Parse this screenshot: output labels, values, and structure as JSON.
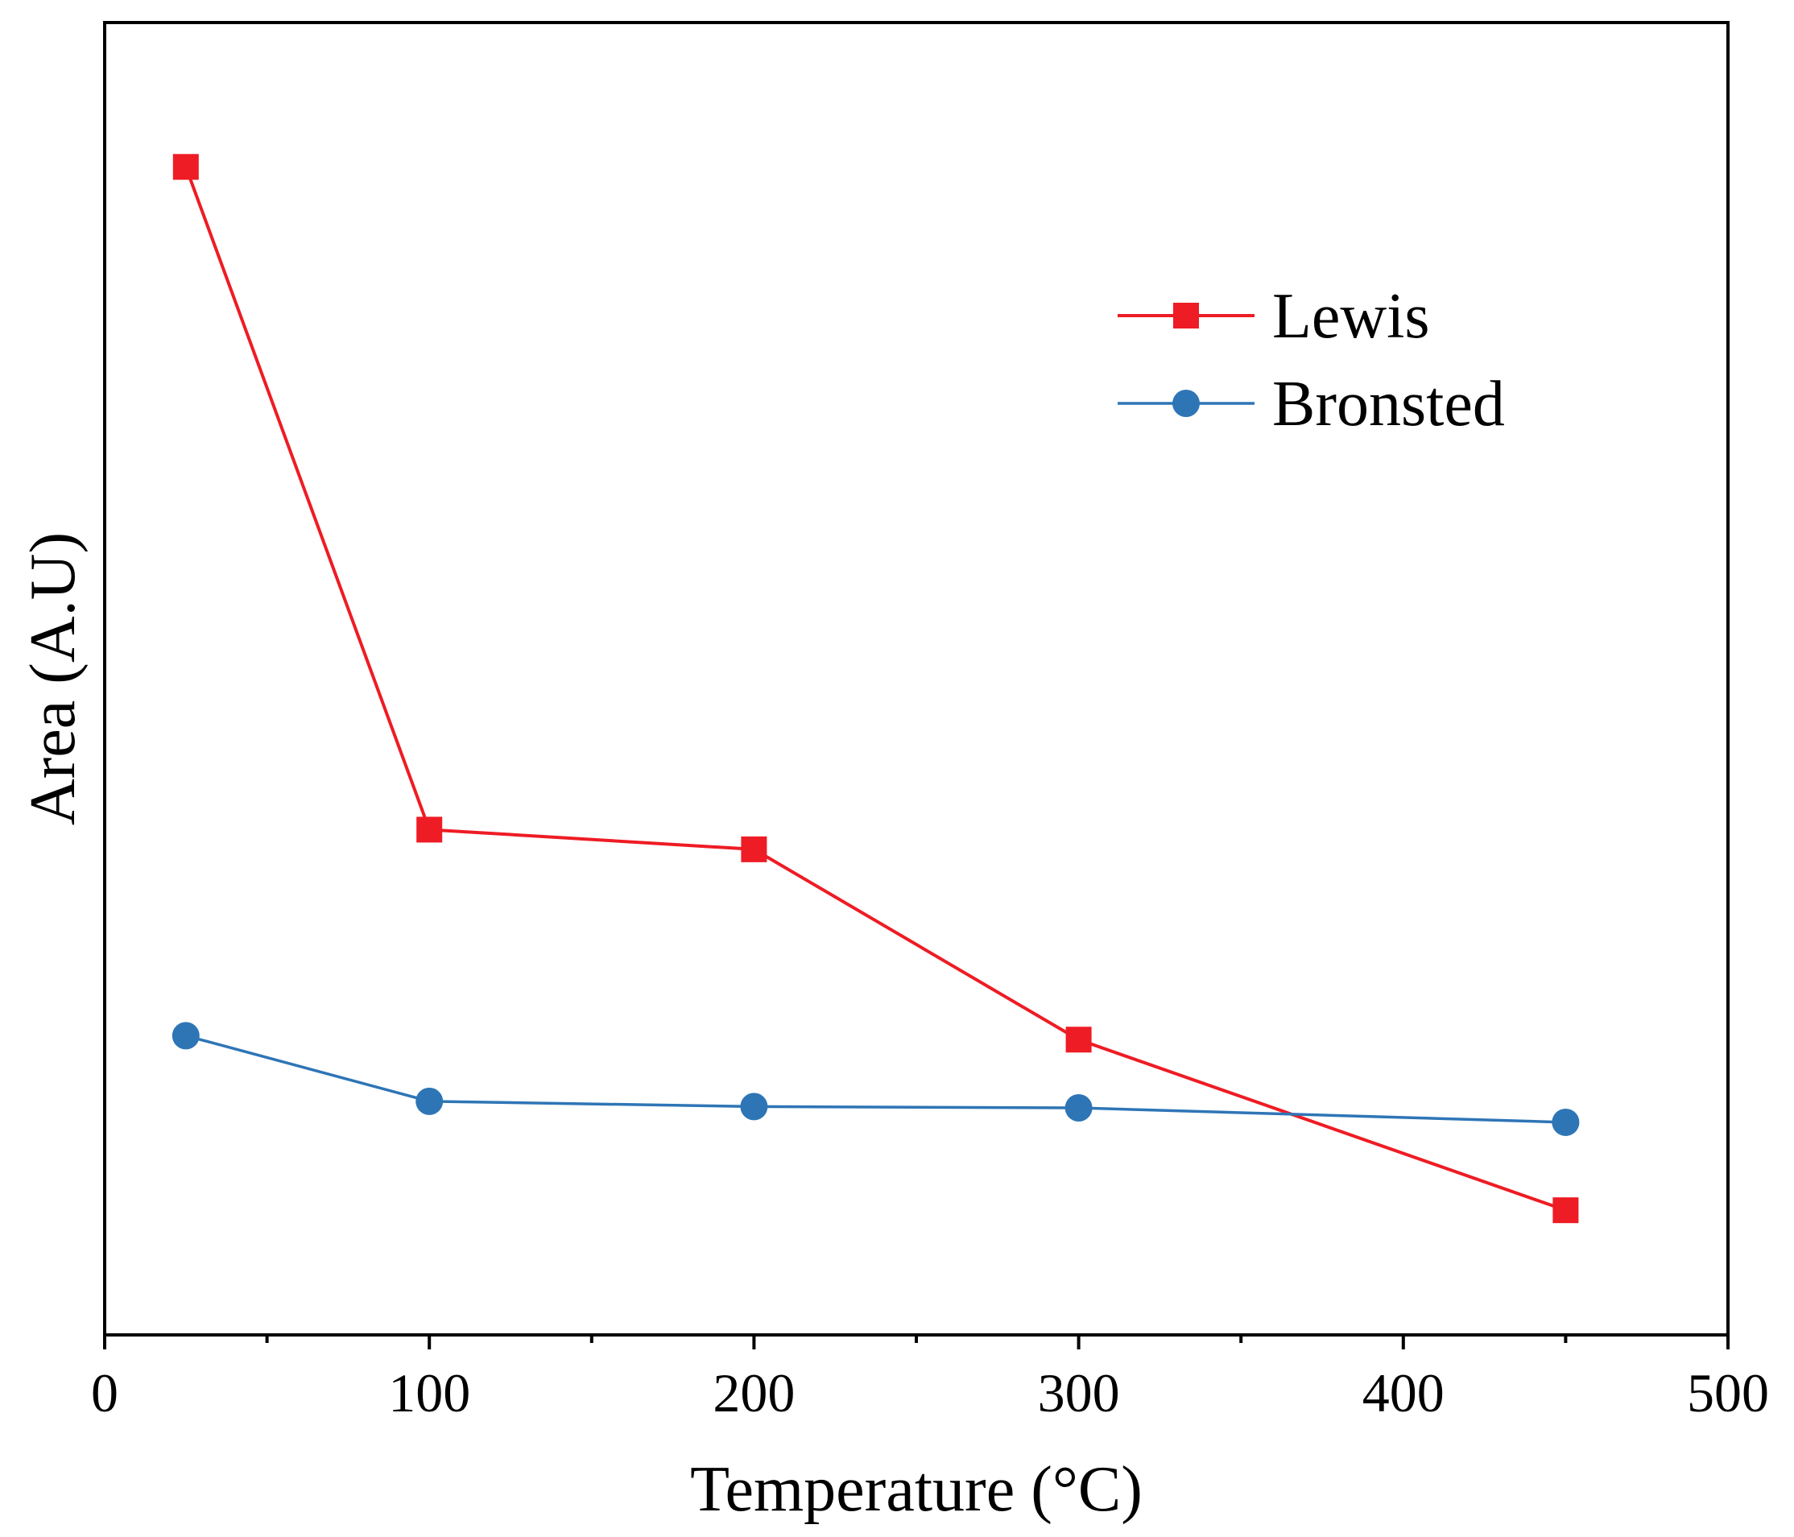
{
  "chart_data": {
    "type": "line",
    "title": "",
    "xlabel": "Temperature (°C)",
    "ylabel": "Area (A.U)",
    "xlim": [
      0,
      500
    ],
    "ylim": [
      0,
      100
    ],
    "x_ticks": [
      "0",
      "100",
      "200",
      "300",
      "400",
      "500"
    ],
    "y_ticks": [],
    "grid": false,
    "legend_position": "upper-right",
    "x": [
      25,
      100,
      200,
      300,
      450
    ],
    "series": [
      {
        "name": "Lewis",
        "marker": "square",
        "color": "#ee1c24",
        "values": [
          89,
          38.5,
          37,
          22.5,
          9.5
        ]
      },
      {
        "name": "Bronsted",
        "marker": "circle",
        "color": "#2e75b6",
        "values": [
          22.8,
          17.8,
          17.4,
          17.3,
          16.2
        ]
      }
    ]
  }
}
